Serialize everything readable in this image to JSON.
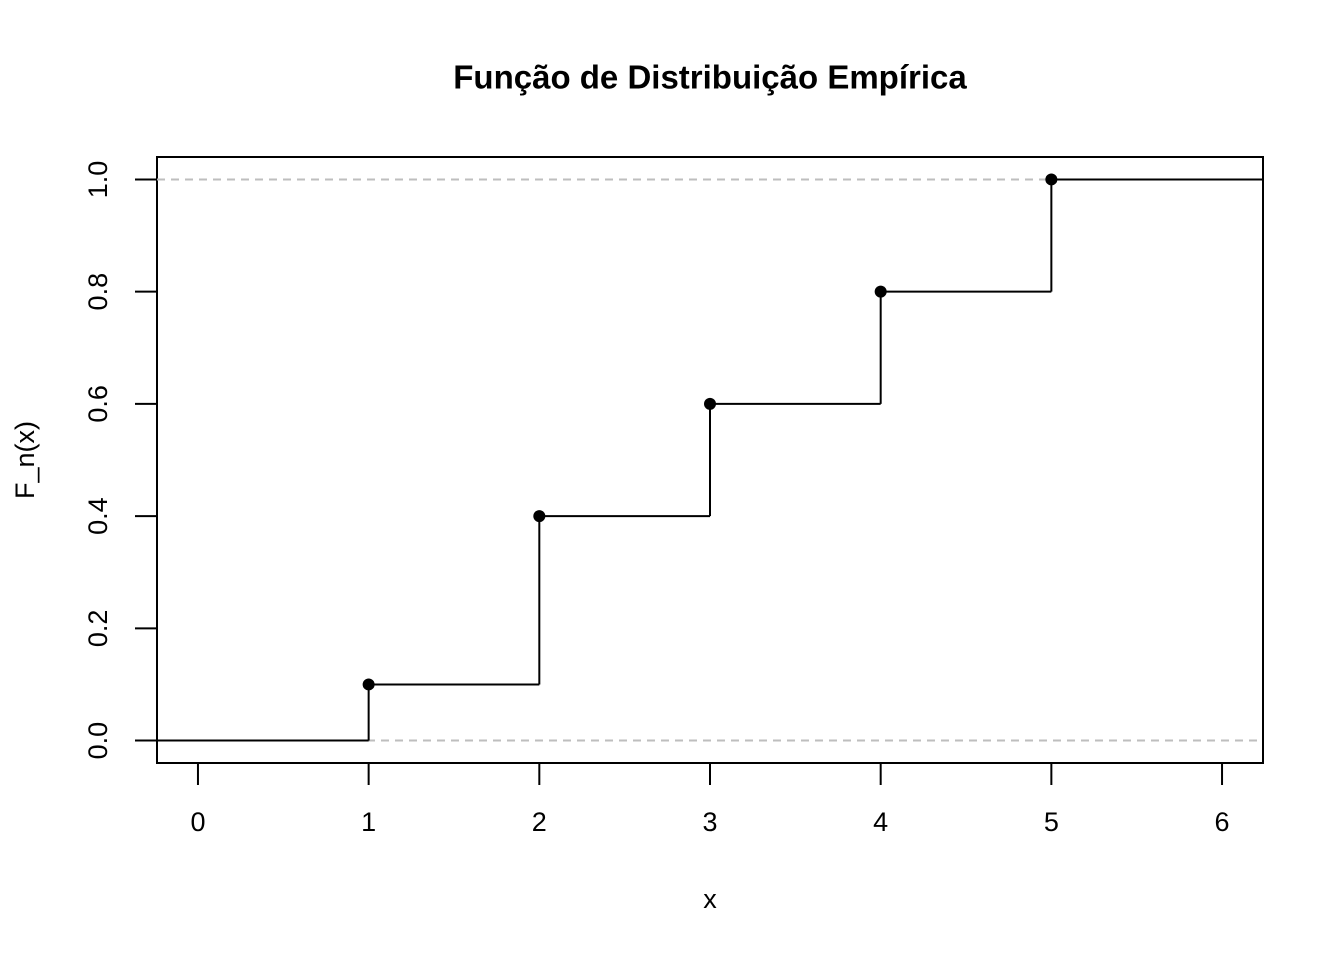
{
  "chart_data": {
    "type": "step",
    "title": "Função de Distribuição Empírica",
    "x_label": "x",
    "y_label": "F_n(x)",
    "x": [
      1,
      2,
      3,
      4,
      5
    ],
    "values": [
      0.1,
      0.4,
      0.6,
      0.8,
      1.0
    ],
    "color": "#000000",
    "reference_lines": [
      0,
      1
    ],
    "reference_color": "#bebebe",
    "xlim": [
      -0.24,
      6.24
    ],
    "ylim": [
      -0.04,
      1.04
    ],
    "xticks": [
      0,
      1,
      2,
      3,
      4,
      5,
      6
    ],
    "yticks": [
      {
        "value": 0,
        "label": "0.0"
      },
      0.2,
      0.4,
      0.6,
      0.8,
      {
        "value": 1,
        "label": "1.0"
      }
    ]
  }
}
